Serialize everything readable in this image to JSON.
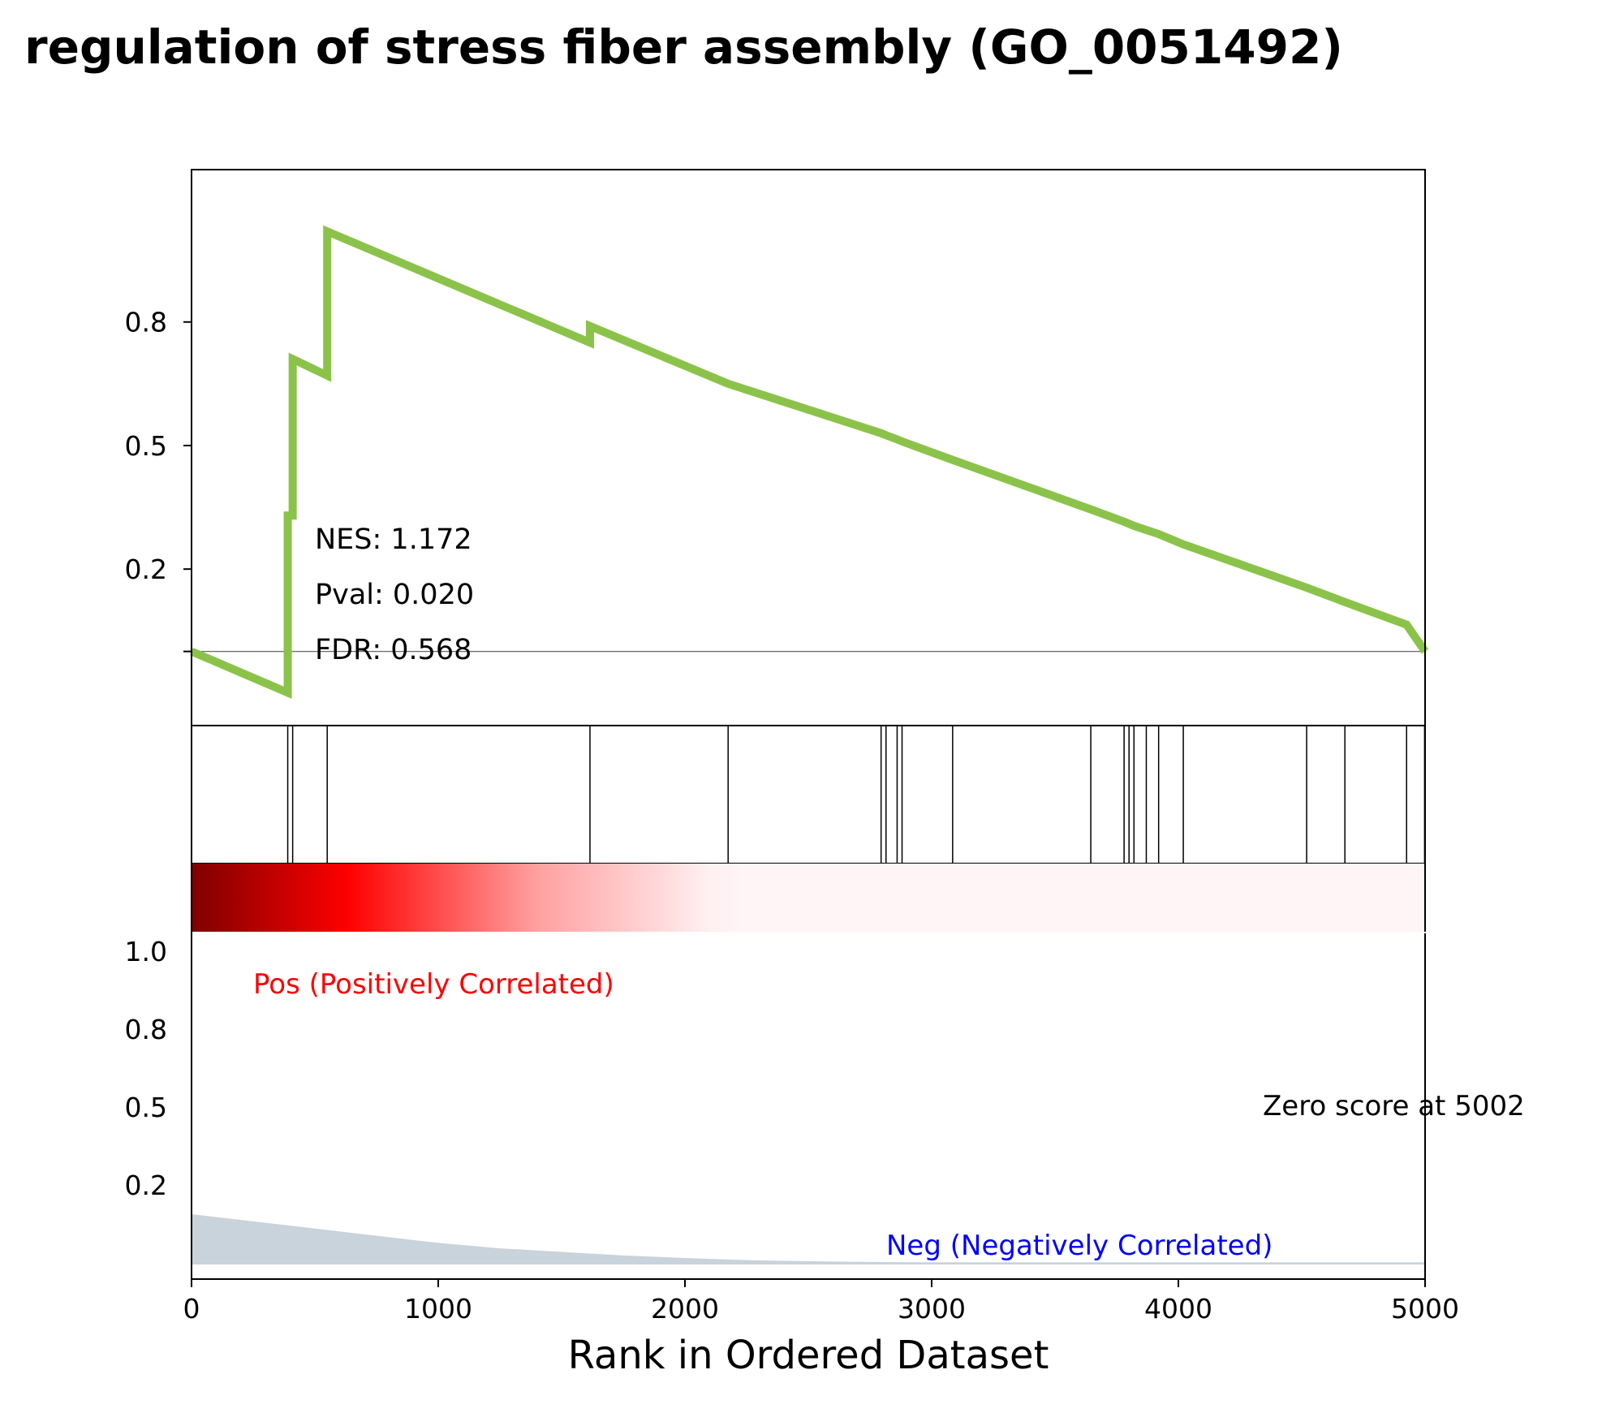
{
  "chart_data": {
    "type": "line",
    "title": "regulation of stress fiber assembly (GO_0051492)",
    "xlabel": "Rank in Ordered Dataset",
    "xlim": [
      0,
      5000
    ],
    "x_ticks": [
      "0",
      "1000",
      "2000",
      "3000",
      "4000",
      "5000"
    ],
    "x_tick_values": [
      0,
      1000,
      2000,
      3000,
      4000,
      5000
    ],
    "enrichment": {
      "ylim": [
        -0.18,
        1.17
      ],
      "y_ticks": [
        "0.8",
        "0.5",
        "0.2"
      ],
      "y_tick_values": [
        0.8,
        0.5,
        0.2
      ],
      "zero_tick_value": 0.0,
      "line_color": "#8bc34a",
      "points": [
        [
          0,
          0.0
        ],
        [
          390,
          -0.1
        ],
        [
          390,
          0.33
        ],
        [
          410,
          0.33
        ],
        [
          410,
          0.71
        ],
        [
          550,
          0.67
        ],
        [
          550,
          1.02
        ],
        [
          1615,
          0.75
        ],
        [
          1615,
          0.79
        ],
        [
          2175,
          0.65
        ],
        [
          2795,
          0.53
        ],
        [
          2815,
          0.525
        ],
        [
          2860,
          0.515
        ],
        [
          2880,
          0.51
        ],
        [
          3085,
          0.465
        ],
        [
          3645,
          0.345
        ],
        [
          3780,
          0.315
        ],
        [
          3800,
          0.31
        ],
        [
          3820,
          0.305
        ],
        [
          3870,
          0.295
        ],
        [
          3920,
          0.285
        ],
        [
          4020,
          0.26
        ],
        [
          4520,
          0.155
        ],
        [
          4675,
          0.12
        ],
        [
          4925,
          0.065
        ],
        [
          5000,
          0.0
        ]
      ]
    },
    "stats": {
      "nes": "NES: 1.172",
      "pval": "Pval: 0.020",
      "fdr": "FDR: 0.568"
    },
    "hits": [
      390,
      410,
      550,
      1615,
      2175,
      2795,
      2815,
      2860,
      2880,
      3085,
      3645,
      3780,
      3800,
      3820,
      3870,
      3920,
      4020,
      4520,
      4675,
      4925,
      4998
    ],
    "rank_metric": {
      "ylim": [
        0,
        1.15
      ],
      "y_ticks": [
        "1.0",
        "0.8",
        "0.5",
        "0.2"
      ],
      "y_tick_values": [
        1.0,
        0.8,
        0.5,
        0.2
      ],
      "fill_color": "#c8d3dc",
      "points": [
        [
          0,
          0.14
        ],
        [
          250,
          0.12
        ],
        [
          500,
          0.1
        ],
        [
          750,
          0.08
        ],
        [
          1000,
          0.06
        ],
        [
          1250,
          0.045
        ],
        [
          1500,
          0.035
        ],
        [
          1750,
          0.025
        ],
        [
          2000,
          0.018
        ],
        [
          2250,
          0.012
        ],
        [
          2500,
          0.009
        ],
        [
          2750,
          0.007
        ],
        [
          3000,
          0.006
        ],
        [
          5000,
          0.006
        ]
      ],
      "pos_label": "Pos (Positively Correlated)",
      "neg_label": "Neg (Negatively Correlated)",
      "zero_label": "Zero score at 5002",
      "pos_color": "#ff0000",
      "neg_color": "#0000ff"
    },
    "heat_colors": [
      "#7f0000",
      "#ff0000",
      "#ffffff",
      "#fff5f7"
    ]
  }
}
